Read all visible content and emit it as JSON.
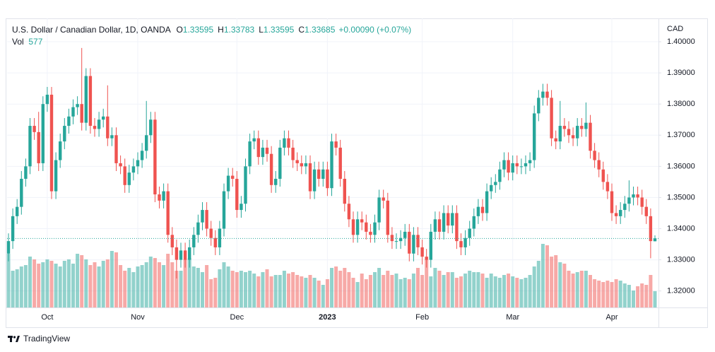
{
  "chart_data": {
    "type": "candlestick",
    "title": "U.S. Dollar / Canadian Dollar, 1D, OANDA",
    "ohlc_labels": [
      "O",
      "H",
      "L",
      "C"
    ],
    "change_label": "+0.00090 (+0.07%)",
    "volume_label": "Vol",
    "y_label": "CAD",
    "brand": "TradingView",
    "up_color": "#26a69a",
    "down_color": "#ef5350",
    "grid": true,
    "categories": [
      null,
      null,
      null,
      null,
      null,
      null,
      null,
      null,
      null,
      "Oct",
      null,
      null,
      null,
      null,
      null,
      null,
      null,
      null,
      null,
      null,
      null,
      null,
      null,
      null,
      null,
      null,
      null,
      null,
      null,
      null,
      "Nov",
      null,
      null,
      null,
      null,
      null,
      null,
      null,
      null,
      null,
      null,
      null,
      null,
      null,
      null,
      null,
      null,
      null,
      null,
      null,
      null,
      null,
      null,
      "Dec",
      null,
      null,
      null,
      null,
      null,
      null,
      null,
      null,
      null,
      null,
      null,
      null,
      null,
      null,
      null,
      null,
      null,
      null,
      null,
      null,
      "2023",
      null,
      null,
      null,
      null,
      null,
      null,
      null,
      null,
      null,
      null,
      null,
      null,
      null,
      null,
      null,
      null,
      null,
      null,
      null,
      null,
      null,
      "Feb",
      null,
      null,
      null,
      null,
      null,
      null,
      null,
      null,
      null,
      null,
      null,
      null,
      null,
      null,
      null,
      null,
      null,
      null,
      null,
      null,
      "Mar",
      null,
      null,
      null,
      null,
      null,
      null,
      null,
      null,
      null,
      null,
      null,
      null,
      null,
      null,
      null,
      null,
      null,
      null,
      null,
      null,
      null,
      null,
      "Apr",
      null,
      null,
      null,
      null,
      null,
      null,
      null,
      null,
      null,
      null
    ],
    "open": [
      1.332,
      1.336,
      1.344,
      1.347,
      1.356,
      1.36,
      1.373,
      1.371,
      1.361,
      1.38,
      1.383,
      1.352,
      1.362,
      1.368,
      1.373,
      1.376,
      1.379,
      1.38,
      1.374,
      1.389,
      1.373,
      1.372,
      1.375,
      1.376,
      1.369,
      1.37,
      1.361,
      1.36,
      1.354,
      1.358,
      1.36,
      1.362,
      1.365,
      1.37,
      1.375,
      1.351,
      1.349,
      1.352,
      1.338,
      1.334,
      1.33,
      1.333,
      1.33,
      1.334,
      1.338,
      1.342,
      1.346,
      1.34,
      1.337,
      1.334,
      1.34,
      1.352,
      1.357,
      1.356,
      1.346,
      1.348,
      1.36,
      1.368,
      1.369,
      1.363,
      1.366,
      1.364,
      1.354,
      1.356,
      1.366,
      1.369,
      1.366,
      1.362,
      1.361,
      1.36,
      1.361,
      1.352,
      1.359,
      1.356,
      1.359,
      1.353,
      1.368,
      1.366,
      1.356,
      1.348,
      1.343,
      1.338,
      1.343,
      1.342,
      1.339,
      1.338,
      1.342,
      1.35,
      1.349,
      1.338,
      1.336,
      1.336,
      1.337,
      1.339,
      1.332,
      1.338,
      1.334,
      1.331,
      1.33,
      1.339,
      1.343,
      1.339,
      1.345,
      1.341,
      1.345,
      1.336,
      1.334,
      1.337,
      1.34,
      1.344,
      1.347,
      1.345,
      1.352,
      1.354,
      1.355,
      1.359,
      1.362,
      1.358,
      1.361,
      1.36,
      1.36,
      1.361,
      1.362,
      1.377,
      1.382,
      1.384,
      1.382,
      1.369,
      1.368,
      1.373,
      1.372,
      1.37,
      1.369,
      1.373,
      1.372,
      1.374,
      1.365,
      1.362,
      1.359,
      1.355,
      1.352,
      1.345,
      1.344,
      1.346,
      1.348,
      1.35,
      1.351,
      1.35,
      1.347,
      1.344,
      1.33595
    ],
    "high": [
      1.3385,
      1.3465,
      1.3495,
      1.3585,
      1.3625,
      1.3755,
      1.3755,
      1.3775,
      1.3825,
      1.3855,
      1.3855,
      1.3645,
      1.3705,
      1.3755,
      1.3785,
      1.3815,
      1.3825,
      1.398,
      1.3915,
      1.3915,
      1.3755,
      1.3775,
      1.3785,
      1.386,
      1.3725,
      1.3725,
      1.3635,
      1.3625,
      1.3605,
      1.3625,
      1.3645,
      1.3675,
      1.381,
      1.3775,
      1.3775,
      1.3535,
      1.3545,
      1.3545,
      1.3405,
      1.3365,
      1.3355,
      1.3355,
      1.3365,
      1.3405,
      1.3445,
      1.3485,
      1.3485,
      1.3425,
      1.3395,
      1.3425,
      1.3545,
      1.3595,
      1.3595,
      1.3585,
      1.3505,
      1.3625,
      1.3705,
      1.3715,
      1.3715,
      1.3685,
      1.3685,
      1.3665,
      1.3585,
      1.3685,
      1.3715,
      1.3715,
      1.3685,
      1.3645,
      1.3635,
      1.3635,
      1.3635,
      1.3615,
      1.3615,
      1.3615,
      1.3615,
      1.3705,
      1.3705,
      1.3685,
      1.3585,
      1.3505,
      1.3455,
      1.3455,
      1.3455,
      1.3445,
      1.3415,
      1.3445,
      1.3525,
      1.3525,
      1.3515,
      1.3405,
      1.3385,
      1.3395,
      1.3415,
      1.3415,
      1.3405,
      1.3405,
      1.3365,
      1.3335,
      1.3415,
      1.3455,
      1.3455,
      1.3475,
      1.3475,
      1.3475,
      1.3475,
      1.3385,
      1.3395,
      1.3425,
      1.3465,
      1.3495,
      1.3495,
      1.3545,
      1.3565,
      1.3575,
      1.3615,
      1.3645,
      1.3645,
      1.3635,
      1.3635,
      1.3625,
      1.3635,
      1.3645,
      1.3795,
      1.3845,
      1.3865,
      1.3865,
      1.3845,
      1.3715,
      1.381,
      1.3755,
      1.3745,
      1.3725,
      1.3755,
      1.3755,
      1.3805,
      1.3765,
      1.3675,
      1.3645,
      1.3615,
      1.3575,
      1.3545,
      1.3475,
      1.3485,
      1.3505,
      1.3555,
      1.3535,
      1.3535,
      1.3525,
      1.3495,
      1.3465,
      1.33783
    ],
    "low": [
      1.3295,
      1.3335,
      1.3415,
      1.3445,
      1.3535,
      1.3575,
      1.3685,
      1.3585,
      1.3585,
      1.3775,
      1.3495,
      1.3495,
      1.3595,
      1.3655,
      1.3705,
      1.3735,
      1.3765,
      1.3715,
      1.3715,
      1.3705,
      1.3695,
      1.3695,
      1.3725,
      1.3665,
      1.3665,
      1.3585,
      1.3575,
      1.3515,
      1.3515,
      1.3555,
      1.3575,
      1.3595,
      1.3625,
      1.3675,
      1.3485,
      1.3465,
      1.3465,
      1.3355,
      1.3315,
      1.324,
      1.3275,
      1.3275,
      1.3275,
      1.3315,
      1.3355,
      1.3395,
      1.3375,
      1.3345,
      1.3315,
      1.3315,
      1.3375,
      1.3495,
      1.3535,
      1.3435,
      1.3435,
      1.3455,
      1.3575,
      1.3655,
      1.3605,
      1.3605,
      1.3615,
      1.3515,
      1.3515,
      1.3535,
      1.3635,
      1.3635,
      1.3595,
      1.3585,
      1.3575,
      1.3575,
      1.3495,
      1.3495,
      1.3535,
      1.3535,
      1.3505,
      1.3505,
      1.3635,
      1.3535,
      1.3455,
      1.3405,
      1.3355,
      1.3355,
      1.3395,
      1.3365,
      1.3355,
      1.3355,
      1.3395,
      1.3465,
      1.3355,
      1.3335,
      1.3335,
      1.3335,
      1.3345,
      1.3295,
      1.3295,
      1.3315,
      1.3285,
      1.3275,
      1.3275,
      1.3365,
      1.3365,
      1.3365,
      1.3385,
      1.3385,
      1.3335,
      1.3315,
      1.3315,
      1.3345,
      1.3375,
      1.3415,
      1.3425,
      1.3425,
      1.3495,
      1.3515,
      1.3525,
      1.3565,
      1.3555,
      1.3555,
      1.3575,
      1.3575,
      1.3575,
      1.3585,
      1.3595,
      1.3745,
      1.3795,
      1.3795,
      1.3665,
      1.3655,
      1.3655,
      1.3695,
      1.3675,
      1.3665,
      1.3665,
      1.3695,
      1.3695,
      1.3625,
      1.3595,
      1.3565,
      1.3525,
      1.3495,
      1.3425,
      1.3415,
      1.3415,
      1.3435,
      1.3455,
      1.3475,
      1.3475,
      1.3445,
      1.3415,
      1.3305,
      1.33595
    ],
    "close": [
      1.336,
      1.344,
      1.347,
      1.356,
      1.36,
      1.373,
      1.371,
      1.361,
      1.38,
      1.383,
      1.352,
      1.362,
      1.368,
      1.373,
      1.376,
      1.379,
      1.38,
      1.374,
      1.389,
      1.373,
      1.372,
      1.375,
      1.376,
      1.369,
      1.37,
      1.361,
      1.36,
      1.354,
      1.358,
      1.36,
      1.362,
      1.365,
      1.37,
      1.375,
      1.351,
      1.349,
      1.352,
      1.338,
      1.334,
      1.33,
      1.333,
      1.33,
      1.334,
      1.338,
      1.342,
      1.346,
      1.34,
      1.337,
      1.334,
      1.34,
      1.352,
      1.357,
      1.356,
      1.346,
      1.348,
      1.36,
      1.368,
      1.369,
      1.363,
      1.366,
      1.364,
      1.354,
      1.356,
      1.366,
      1.369,
      1.366,
      1.362,
      1.361,
      1.36,
      1.361,
      1.352,
      1.359,
      1.356,
      1.359,
      1.353,
      1.368,
      1.366,
      1.356,
      1.348,
      1.343,
      1.338,
      1.343,
      1.342,
      1.339,
      1.338,
      1.342,
      1.35,
      1.349,
      1.338,
      1.336,
      1.336,
      1.337,
      1.339,
      1.332,
      1.338,
      1.334,
      1.331,
      1.33,
      1.339,
      1.343,
      1.339,
      1.345,
      1.341,
      1.345,
      1.336,
      1.334,
      1.337,
      1.34,
      1.344,
      1.347,
      1.345,
      1.352,
      1.354,
      1.355,
      1.359,
      1.362,
      1.358,
      1.361,
      1.36,
      1.36,
      1.361,
      1.362,
      1.377,
      1.382,
      1.384,
      1.382,
      1.369,
      1.368,
      1.373,
      1.372,
      1.37,
      1.369,
      1.373,
      1.372,
      1.374,
      1.365,
      1.362,
      1.359,
      1.355,
      1.352,
      1.345,
      1.344,
      1.346,
      1.348,
      1.35,
      1.351,
      1.35,
      1.347,
      1.344,
      1.336,
      1.33685
    ],
    "volume": [
      1900,
      1300,
      1350,
      1450,
      1500,
      1800,
      1700,
      1550,
      1600,
      1700,
      1650,
      1550,
      1450,
      1650,
      1700,
      1550,
      1900,
      1850,
      1700,
      1500,
      1600,
      1450,
      1650,
      1700,
      2000,
      1950,
      1500,
      1300,
      1400,
      1250,
      1450,
      1500,
      1600,
      1800,
      1750,
      1600,
      1500,
      1900,
      1600,
      1300,
      1300,
      1700,
      1750,
      1450,
      1400,
      1250,
      1500,
      1000,
      1050,
      1350,
      1600,
      1450,
      1300,
      1250,
      1300,
      1250,
      1300,
      1200,
      1100,
      1250,
      1350,
      1100,
      1150,
      1150,
      1300,
      1200,
      1250,
      1150,
      1100,
      1050,
      1150,
      1050,
      950,
      800,
      1000,
      1400,
      1450,
      1300,
      1400,
      1250,
      1050,
      900,
      1200,
      1000,
      1150,
      1250,
      1400,
      1150,
      1300,
      1150,
      1200,
      1000,
      1050,
      1000,
      1200,
      1400,
      1150,
      1700,
      1100,
      1400,
      1300,
      1150,
      1250,
      1250,
      1050,
      1100,
      1200,
      1300,
      1250,
      1250,
      1200,
      1050,
      1200,
      1100,
      1050,
      1150,
      1200,
      1100,
      1050,
      1000,
      1050,
      1150,
      1450,
      1650,
      2250,
      2200,
      1800,
      1850,
      1600,
      1550,
      1300,
      1200,
      1250,
      1300,
      1300,
      1150,
      1000,
      950,
      900,
      950,
      900,
      1000,
      950,
      850,
      800,
      600,
      750,
      850,
      800,
      1150,
      577
    ],
    "ylim": [
      1.3147,
      1.4075
    ],
    "yticks": [
      {
        "value": 1.32,
        "label": "1.32000"
      },
      {
        "value": 1.33,
        "label": "1.33000"
      },
      {
        "value": 1.34,
        "label": "1.34000"
      },
      {
        "value": 1.35,
        "label": "1.35000"
      },
      {
        "value": 1.36,
        "label": "1.36000"
      },
      {
        "value": 1.37,
        "label": "1.37000"
      },
      {
        "value": 1.38,
        "label": "1.38000"
      },
      {
        "value": 1.39,
        "label": "1.39000"
      },
      {
        "value": 1.4,
        "label": "1.40000"
      }
    ]
  }
}
